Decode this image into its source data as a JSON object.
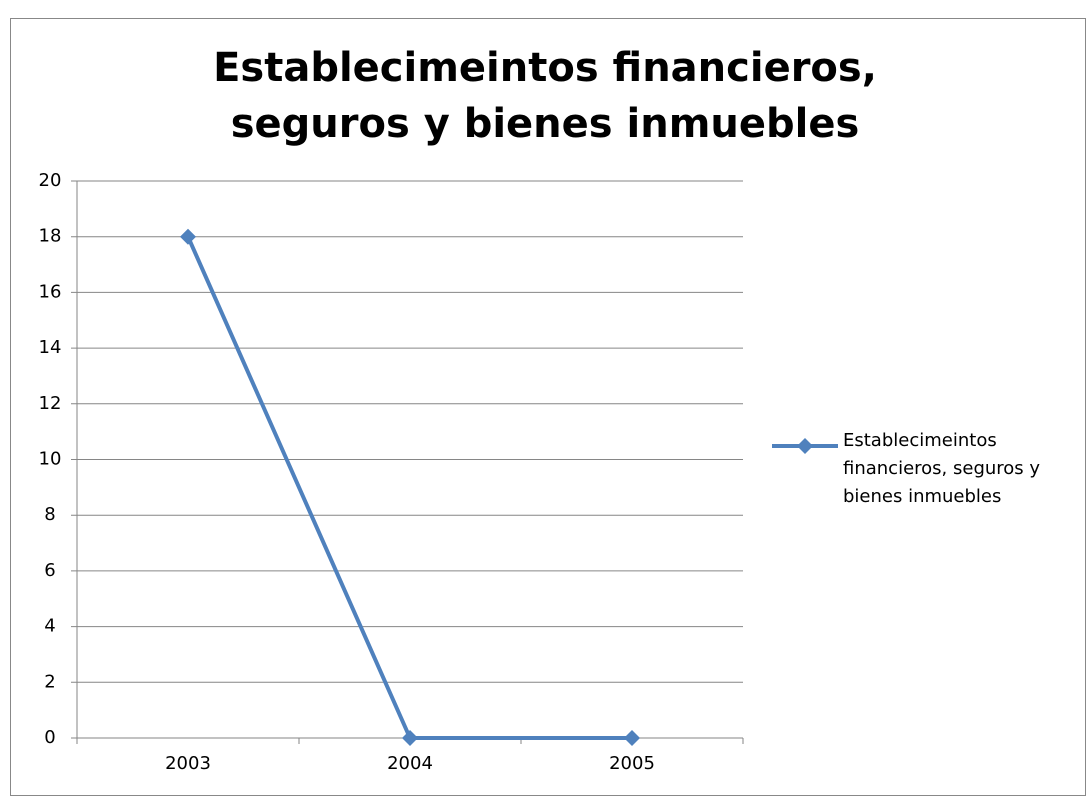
{
  "chart_data": {
    "type": "line",
    "title": "Establecimeintos financieros, seguros y bienes inmuebles",
    "categories": [
      "2003",
      "2004",
      "2005"
    ],
    "series": [
      {
        "name": "Establecimeintos financieros, seguros y bienes inmuebles",
        "color": "#4f81bd",
        "values": [
          18,
          0,
          0
        ]
      }
    ],
    "ylim": [
      0,
      20
    ],
    "yticks": [
      0,
      2,
      4,
      6,
      8,
      10,
      12,
      14,
      16,
      18,
      20
    ],
    "grid": true,
    "legend": "right"
  }
}
